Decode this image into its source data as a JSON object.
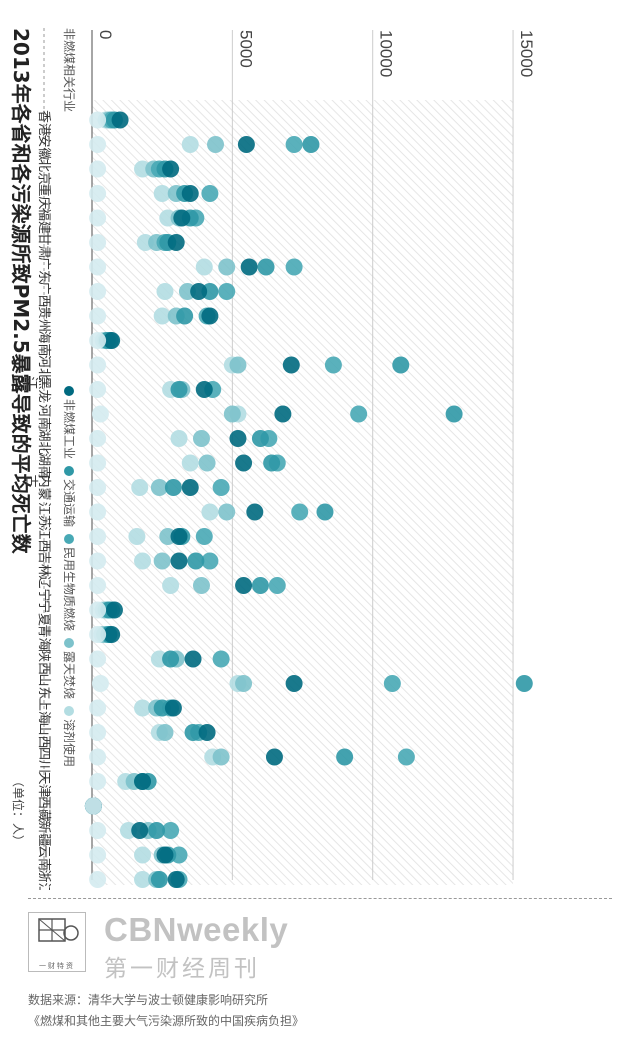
{
  "chart_data": {
    "type": "scatter",
    "orientation": "rotated-90-clockwise",
    "title": "2013年各省和各污染源所致PM2.5暴露导致的平均死亡数",
    "unit": "（单位：人）",
    "x_ticks": [
      "0",
      "5000",
      "10000",
      "15000"
    ],
    "xlim": [
      0,
      15000
    ],
    "grid": true,
    "legend_position": "right-top",
    "categories": [
      "香港",
      "安徽",
      "北京",
      "重庆",
      "福建",
      "甘肃",
      "广东",
      "广西",
      "贵州",
      "海南",
      "河北",
      "黑龙江",
      "河南",
      "湖北",
      "湖南",
      "内蒙古",
      "江苏",
      "江西",
      "吉林",
      "辽宁",
      "宁夏",
      "青海",
      "陕西",
      "山东",
      "上海",
      "山西",
      "四川",
      "天津",
      "西藏",
      "新疆",
      "云南",
      "浙江"
    ],
    "series": [
      {
        "name": "非燃煤相关行业",
        "color": "#d4ebef",
        "values": [
          200,
          200,
          200,
          200,
          200,
          200,
          200,
          200,
          200,
          200,
          200,
          200,
          300,
          200,
          200,
          200,
          200,
          200,
          200,
          200,
          200,
          200,
          200,
          300,
          200,
          200,
          200,
          200,
          50,
          200,
          200,
          200
        ]
      },
      {
        "name": "非燃煤工业",
        "color": "#006a80",
        "values": [
          1000,
          5500,
          2800,
          3500,
          3200,
          3000,
          5600,
          3800,
          4200,
          700,
          7100,
          4000,
          6800,
          5200,
          5400,
          3500,
          5800,
          3100,
          3100,
          5400,
          800,
          700,
          3600,
          7200,
          2900,
          4100,
          6500,
          1800,
          50,
          1700,
          2600,
          3000
        ]
      },
      {
        "name": "交通运输",
        "color": "#2f98a6",
        "values": [
          800,
          7800,
          2600,
          3300,
          3500,
          2700,
          6200,
          4200,
          3300,
          550,
          11000,
          3100,
          12900,
          6000,
          6400,
          2900,
          8300,
          3200,
          3700,
          6000,
          600,
          600,
          2800,
          15400,
          2500,
          3600,
          9000,
          2000,
          50,
          2300,
          2700,
          2400
        ]
      },
      {
        "name": "民用生物质燃烧",
        "color": "#48a9b5",
        "values": [
          700,
          7200,
          2400,
          4200,
          3700,
          2600,
          7200,
          4800,
          4100,
          650,
          8600,
          4300,
          9500,
          6300,
          6600,
          4600,
          7400,
          4000,
          4200,
          6600,
          700,
          600,
          4600,
          10700,
          2800,
          3800,
          11200,
          1800,
          50,
          2800,
          3100,
          3100
        ]
      },
      {
        "name": "露天焚烧",
        "color": "#7dc2cb",
        "values": [
          600,
          4400,
          2200,
          3000,
          3100,
          2300,
          4800,
          3400,
          3000,
          500,
          5200,
          3200,
          5000,
          3900,
          4100,
          2400,
          4800,
          2700,
          2500,
          3900,
          500,
          450,
          3000,
          5400,
          2300,
          2600,
          4600,
          1500,
          50,
          2000,
          2500,
          2300
        ]
      },
      {
        "name": "溶剂使用",
        "color": "#b3dde2",
        "values": [
          500,
          3500,
          1800,
          2500,
          2700,
          1900,
          4000,
          2600,
          2500,
          400,
          5000,
          2800,
          5200,
          3100,
          3500,
          1700,
          4200,
          1600,
          1800,
          2800,
          400,
          350,
          2400,
          5200,
          1800,
          2400,
          4300,
          1200,
          50,
          1300,
          1800,
          1800
        ]
      }
    ]
  },
  "footer": {
    "brand": "CBNweekly",
    "brand_cn": "第一财经周刊",
    "logo_sub": "一财特资",
    "source_line1": "数据来源：清华大学与波士顿健康影响研究所",
    "source_line2": "《燃煤和其他主要大气污染源所致的中国疾病负担》"
  }
}
